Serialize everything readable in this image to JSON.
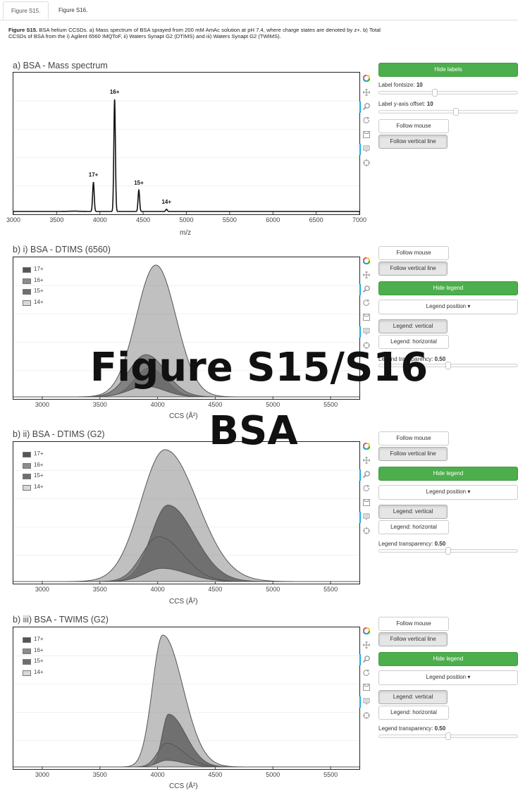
{
  "tabs": [
    {
      "label": "Figure S15."
    },
    {
      "label": "Figure S16."
    }
  ],
  "caption": {
    "bold": "Figure S15.",
    "text": " BSA helium CCSDs. a) Mass spectrum of BSA sprayed from 200 mM AmAc solution at pH 7.4, where charge states are denoted by z+. b) Total CCSDs of BSA from the i) Agilent 6560 IMQToF, ii) Waters Synapt G2 (DTIMS) and iii) Waters Synapt G2 (TWIMS)."
  },
  "overlay": {
    "line1": "Figure S15/S16",
    "line2": "BSA"
  },
  "toolbar_icons": [
    "bokeh-logo-icon",
    "pan-icon",
    "zoom-icon",
    "reset-icon",
    "save-icon",
    "hover-icon",
    "crosshair-icon"
  ],
  "colors": {
    "series_17": "#555555",
    "series_16": "#8c8c8c",
    "series_15": "#6e6e6e",
    "series_14": "#d9d9d9",
    "button_green": "#4cae4c",
    "toolbar_active": "#26aae1"
  },
  "controls": {
    "a": {
      "hide_labels": "Hide labels",
      "label_fontsize": {
        "label": "Label fontsize:",
        "value": "10"
      },
      "label_yoffset": {
        "label": "Label y-axis offset:",
        "value": "10"
      },
      "follow_mouse": "Follow mouse",
      "follow_vertical": "Follow vertical line"
    },
    "b": {
      "follow_mouse": "Follow mouse",
      "follow_vertical": "Follow vertical line",
      "hide_legend": "Hide legend",
      "legend_position": "Legend position",
      "legend_vertical": "Legend: vertical",
      "legend_horizontal": "Legend: horizontal",
      "legend_transparency": {
        "label": "Legend transparency:",
        "value": "0.50"
      }
    }
  },
  "chart_data": [
    {
      "type": "line",
      "title": "a) BSA - Mass spectrum",
      "xlabel": "m/z",
      "ylabel": "",
      "xlim": [
        3000,
        7000
      ],
      "ylim": [
        0,
        1.0
      ],
      "xticks": [
        3000,
        3500,
        4000,
        4500,
        5000,
        5500,
        6000,
        6500,
        7000
      ],
      "grid": false,
      "peaks": [
        {
          "label": "17+",
          "mz": 3925,
          "intensity": 0.26
        },
        {
          "label": "16+",
          "mz": 4170,
          "intensity": 1.0
        },
        {
          "label": "15+",
          "mz": 4450,
          "intensity": 0.19
        },
        {
          "label": "14+",
          "mz": 4770,
          "intensity": 0.02
        }
      ]
    },
    {
      "type": "area",
      "title": "b) i) BSA - DTIMS (6560)",
      "xlabel": "CCS (Å²)",
      "ylabel": "",
      "xlim": [
        2750,
        5750
      ],
      "ylim": [
        0,
        1.0
      ],
      "xticks": [
        3000,
        3500,
        4000,
        4500,
        5000,
        5500
      ],
      "legend": "top-left",
      "series": [
        {
          "name": "17+",
          "center": 3930,
          "height": 0.22,
          "sigma_left": 130,
          "sigma_right": 140
        },
        {
          "name": "16+",
          "center": 3985,
          "height": 1.0,
          "sigma_left": 170,
          "sigma_right": 175
        },
        {
          "name": "15+",
          "center": 3900,
          "height": 0.32,
          "sigma_left": 150,
          "sigma_right": 170
        },
        {
          "name": "14+",
          "center": 3900,
          "height": 0.08,
          "sigma_left": 150,
          "sigma_right": 160
        }
      ]
    },
    {
      "type": "area",
      "title": "b) ii) BSA - DTIMS (G2)",
      "xlabel": "CCS (Å²)",
      "ylabel": "",
      "xlim": [
        2750,
        5750
      ],
      "ylim": [
        0,
        1.0
      ],
      "xticks": [
        3000,
        3500,
        4000,
        4500,
        5000,
        5500
      ],
      "legend": "top-left",
      "series": [
        {
          "name": "17+",
          "center": 4090,
          "height": 0.58,
          "sigma_left": 145,
          "sigma_right": 230
        },
        {
          "name": "16+",
          "center": 4065,
          "height": 1.0,
          "sigma_left": 210,
          "sigma_right": 280
        },
        {
          "name": "15+",
          "center": 4010,
          "height": 0.34,
          "sigma_left": 145,
          "sigma_right": 210
        },
        {
          "name": "14+",
          "center": 4040,
          "height": 0.1,
          "sigma_left": 150,
          "sigma_right": 220
        }
      ]
    },
    {
      "type": "area",
      "title": "b) iii) BSA - TWIMS (G2)",
      "xlabel": "CCS (Å²)",
      "ylabel": "",
      "xlim": [
        2750,
        5750
      ],
      "ylim": [
        0,
        1.0
      ],
      "xticks": [
        3000,
        3500,
        4000,
        4500,
        5000,
        5500
      ],
      "legend": "top-left",
      "series": [
        {
          "name": "17+",
          "center": 4095,
          "height": 0.4,
          "sigma_left": 55,
          "sigma_right": 150
        },
        {
          "name": "16+",
          "center": 4045,
          "height": 1.0,
          "sigma_left": 90,
          "sigma_right": 175
        },
        {
          "name": "15+",
          "center": 4080,
          "height": 0.18,
          "sigma_left": 80,
          "sigma_right": 150
        },
        {
          "name": "14+",
          "center": 4080,
          "height": 0.05,
          "sigma_left": 80,
          "sigma_right": 150
        }
      ]
    }
  ]
}
